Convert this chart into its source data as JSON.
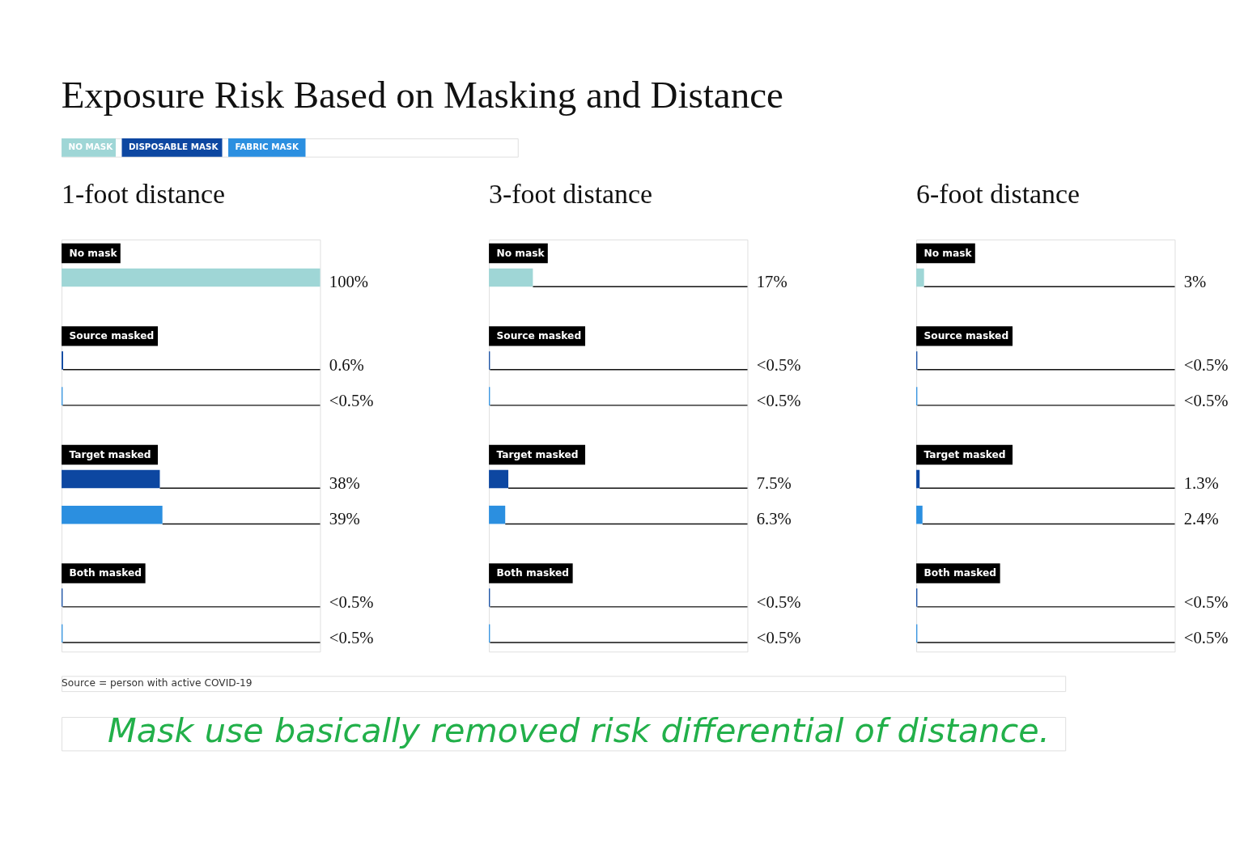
{
  "chart_data": [
    {
      "type": "bar",
      "orientation": "horizontal",
      "title": "Exposure Risk Based on Masking and Distance",
      "subtitle": "1-foot distance",
      "categories": [
        "No mask",
        "Source masked",
        null,
        "Target masked",
        null,
        "Both masked",
        null
      ],
      "xlim": [
        0,
        100
      ],
      "tick_labels": "y",
      "grid": false,
      "legend": "top left",
      "series": [
        {
          "name": "NO MASK",
          "color": "#9fd6d6",
          "values": [
            100,
            null,
            null,
            null,
            null,
            null,
            null
          ],
          "value_labels": [
            "100%",
            null,
            null,
            null,
            null,
            null,
            null
          ]
        },
        {
          "name": "DISPOSABLE MASK",
          "color": "#0d47a1",
          "values": [
            null,
            0.6,
            null,
            38,
            null,
            0.4,
            null
          ],
          "value_labels": [
            null,
            "0.6%",
            null,
            "38%",
            null,
            "<0.5%",
            null
          ]
        },
        {
          "name": "FABRIC MASK",
          "color": "#2b8fe0",
          "values": [
            null,
            null,
            0.4,
            null,
            39,
            null,
            0.4
          ],
          "value_labels": [
            null,
            null,
            "<0.5%",
            null,
            "39%",
            null,
            "<0.5%"
          ]
        }
      ],
      "annotations": [
        "Source = person with active COVID-19",
        "Mask use basically removed risk differential of distance."
      ]
    },
    {
      "type": "bar",
      "orientation": "horizontal",
      "subtitle": "3-foot distance",
      "categories": [
        "No mask",
        "Source masked",
        null,
        "Target masked",
        null,
        "Both masked",
        null
      ],
      "xlim": [
        0,
        100
      ],
      "tick_labels": "y",
      "grid": false,
      "series": [
        {
          "color": "#9fd6d6",
          "values": [
            17,
            null,
            null,
            null,
            null,
            null,
            null
          ],
          "value_labels": [
            "17%",
            null,
            null,
            null,
            null,
            null,
            null
          ]
        },
        {
          "color": "#0d47a1",
          "values": [
            null,
            0.4,
            null,
            7.5,
            null,
            0.4,
            null
          ],
          "value_labels": [
            null,
            "<0.5%",
            null,
            "7.5%",
            null,
            "<0.5%",
            null
          ]
        },
        {
          "color": "#2b8fe0",
          "values": [
            null,
            null,
            0.4,
            null,
            6.3,
            null,
            0.4
          ],
          "value_labels": [
            null,
            null,
            "<0.5%",
            null,
            "6.3%",
            null,
            "<0.5%"
          ]
        }
      ]
    },
    {
      "type": "bar",
      "orientation": "horizontal",
      "subtitle": "6-foot distance",
      "categories": [
        "No mask",
        "Source masked",
        null,
        "Target masked",
        null,
        "Both masked",
        null
      ],
      "xlim": [
        0,
        100
      ],
      "tick_labels": "y",
      "grid": false,
      "series": [
        {
          "color": "#9fd6d6",
          "values": [
            3,
            null,
            null,
            null,
            null,
            null,
            null
          ],
          "value_labels": [
            "3%",
            null,
            null,
            null,
            null,
            null,
            null
          ]
        },
        {
          "color": "#0d47a1",
          "values": [
            null,
            0.4,
            null,
            1.3,
            null,
            0.4,
            null
          ],
          "value_labels": [
            null,
            "<0.5%",
            null,
            "1.3%",
            null,
            "<0.5%",
            null
          ]
        },
        {
          "color": "#2b8fe0",
          "values": [
            null,
            null,
            0.4,
            null,
            2.4,
            null,
            0.4
          ],
          "value_labels": [
            null,
            null,
            "<0.5%",
            null,
            "2.4%",
            null,
            "<0.5%"
          ]
        }
      ]
    }
  ]
}
